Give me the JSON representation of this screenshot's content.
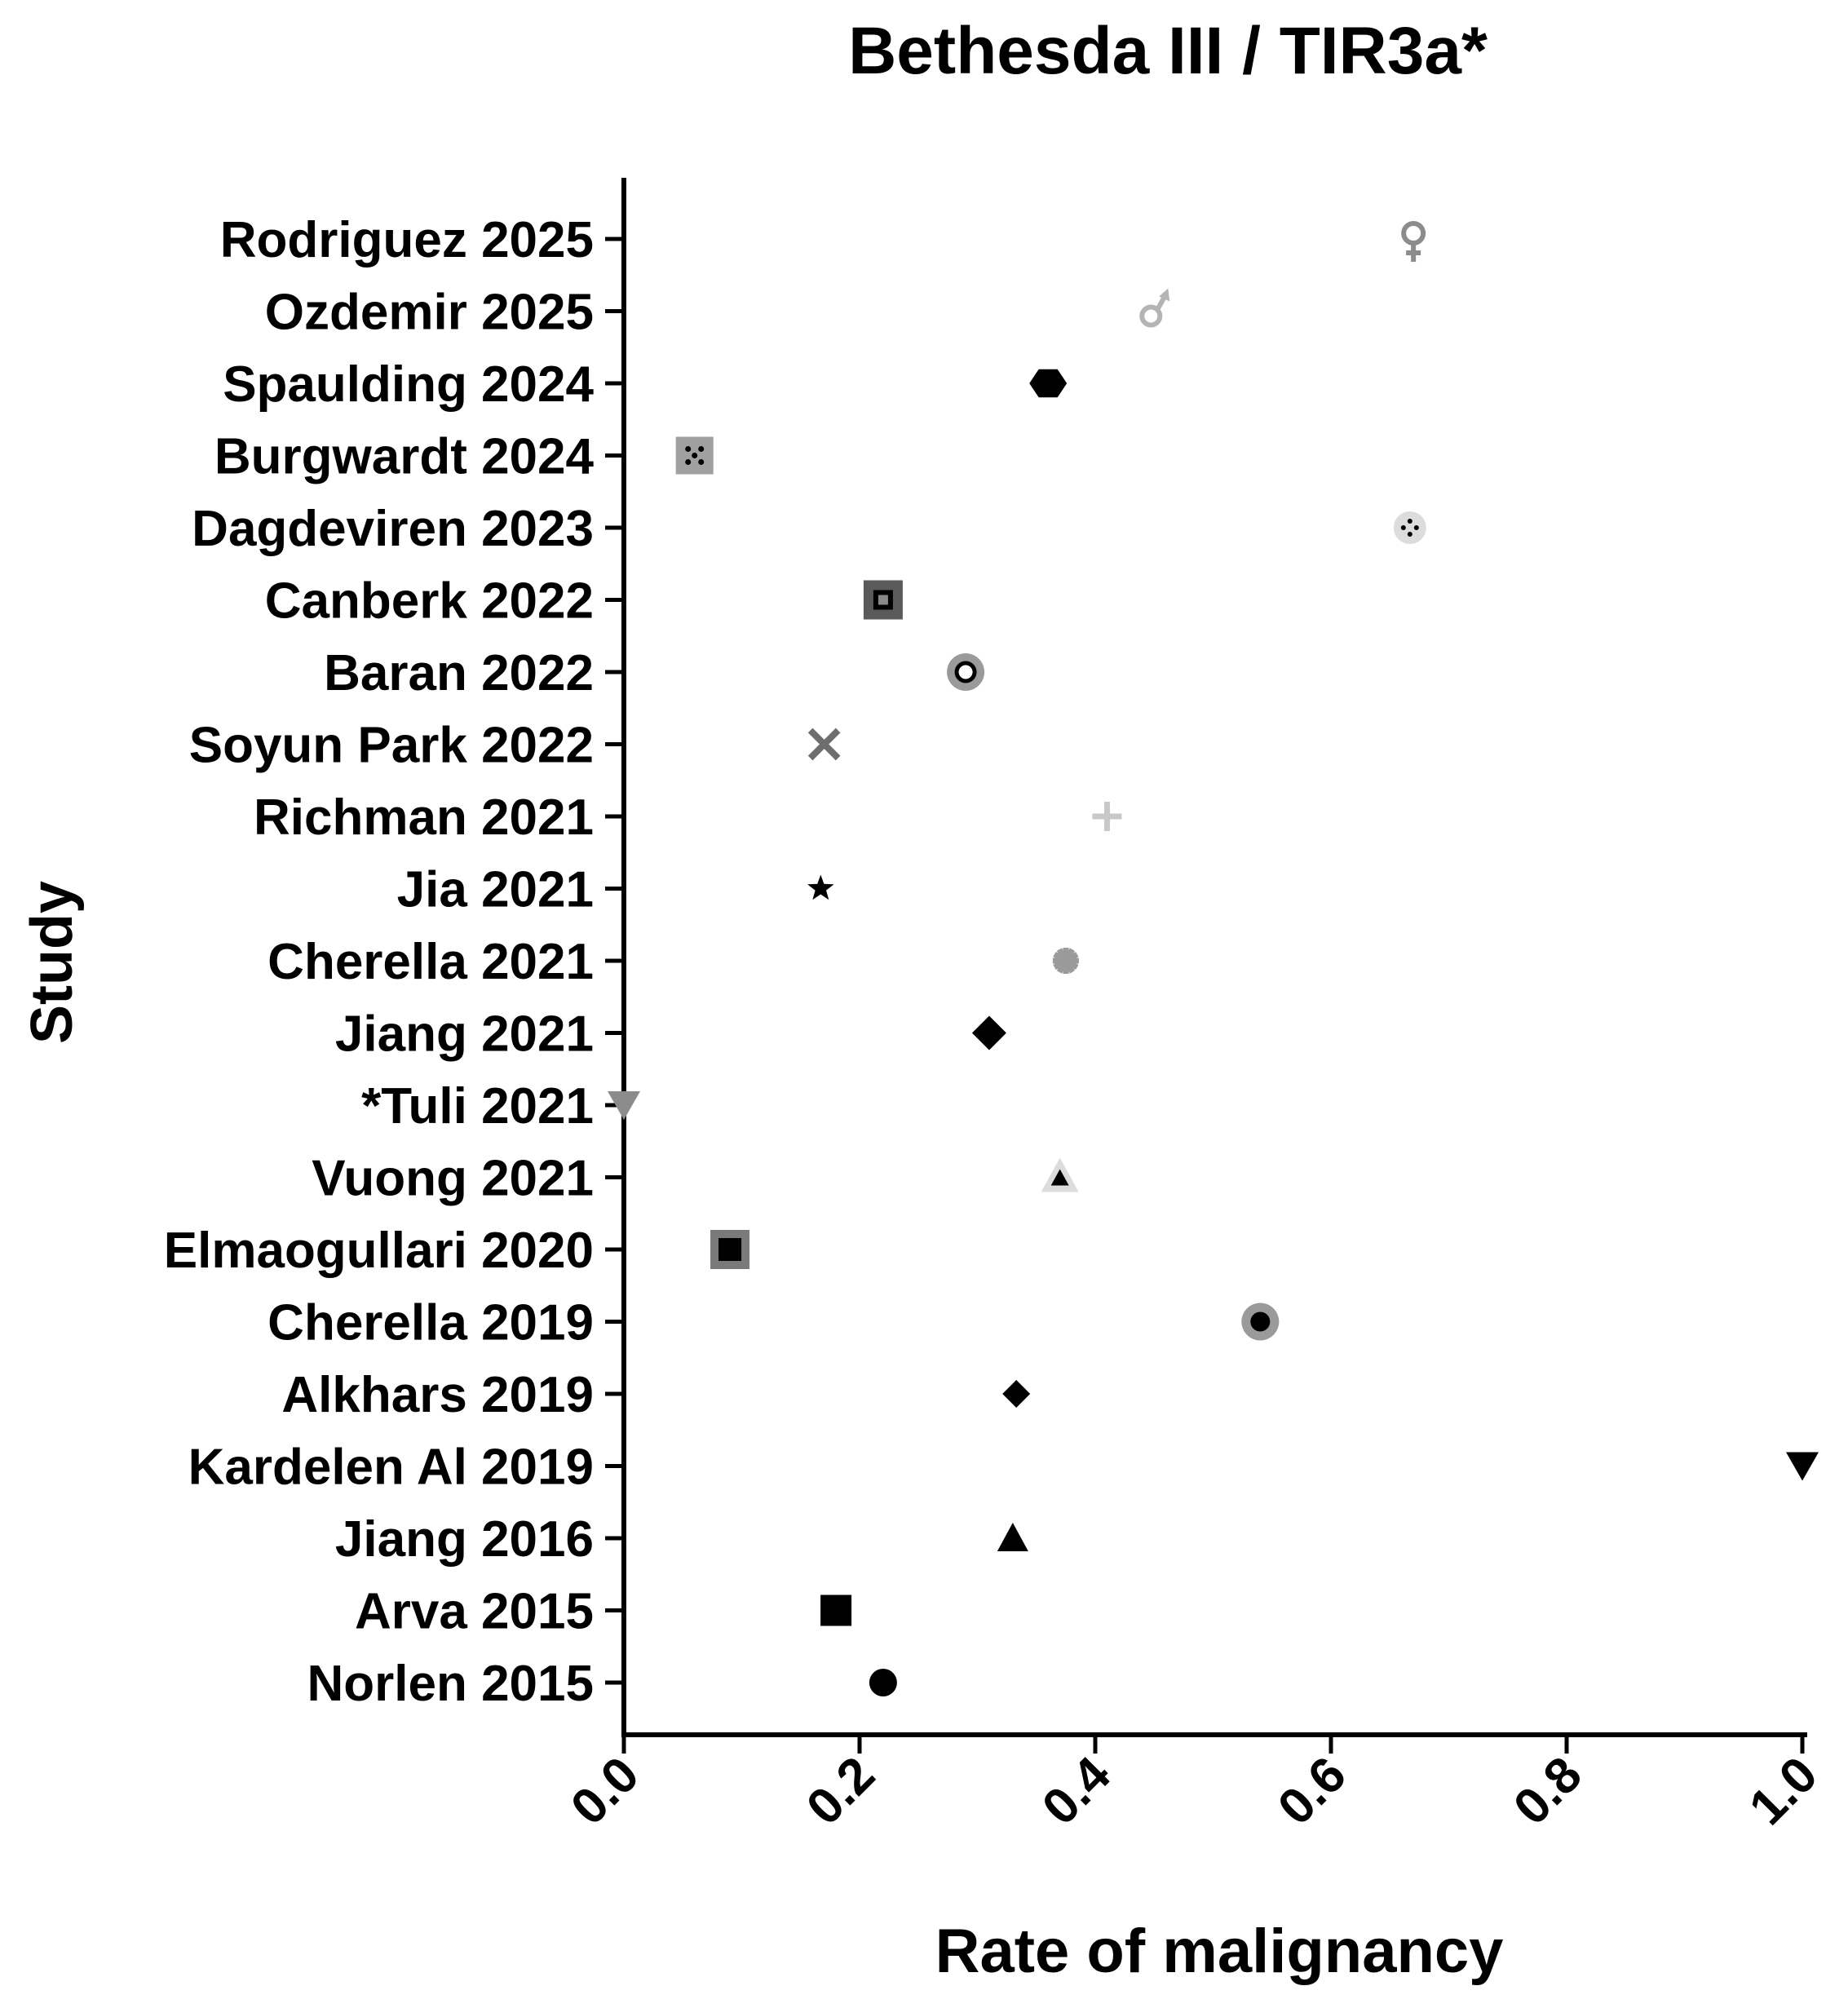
{
  "chart_data": {
    "type": "scatter",
    "title": "Bethesda III / TIR3a*",
    "xlabel": "Rate of malignancy",
    "ylabel": "Study",
    "xlim": [
      0.0,
      1.0
    ],
    "x_ticks": [
      "0.0",
      "0.2",
      "0.4",
      "0.6",
      "0.8",
      "1.0"
    ],
    "grid": false,
    "legend": "none",
    "points": [
      {
        "study": "Rodriguez 2025",
        "value": 0.67,
        "marker": "female-symbol",
        "color": "#8c8c8c"
      },
      {
        "study": "Ozdemir 2025",
        "value": 0.45,
        "marker": "male-symbol",
        "color": "#b4b4b4"
      },
      {
        "study": "Spaulding 2024",
        "value": 0.36,
        "marker": "hexagon",
        "color": "#000000"
      },
      {
        "study": "Burgwardt 2024",
        "value": 0.06,
        "marker": "square-x",
        "color": "#a0a0a0"
      },
      {
        "study": "Dagdeviren 2023",
        "value": 0.667,
        "marker": "circle-dotted",
        "color": "#dcdcdc"
      },
      {
        "study": "Canberk 2022",
        "value": 0.22,
        "marker": "square-ring",
        "color": "#5a5a5a"
      },
      {
        "study": "Baran 2022",
        "value": 0.29,
        "marker": "circle-ring",
        "color": "#9a9a9a"
      },
      {
        "study": "Soyun Park 2022",
        "value": 0.17,
        "marker": "x",
        "color": "#6e6e6e"
      },
      {
        "study": "Richman 2021",
        "value": 0.41,
        "marker": "plus",
        "color": "#c8c8c8"
      },
      {
        "study": "Jia 2021",
        "value": 0.167,
        "marker": "star",
        "color": "#000000"
      },
      {
        "study": "Cherella 2021",
        "value": 0.375,
        "marker": "asterisk",
        "color": "#9a9a9a"
      },
      {
        "study": "Jiang 2021",
        "value": 0.31,
        "marker": "diamond",
        "color": "#000000"
      },
      {
        "study": "*Tuli 2021",
        "value": 0.0,
        "marker": "triangle-down",
        "color": "#8c8c8c"
      },
      {
        "study": "Vuong 2021",
        "value": 0.37,
        "marker": "triangle-ring",
        "color": "#dcdcdc"
      },
      {
        "study": "Elmaogullari 2020",
        "value": 0.09,
        "marker": "square-filled-border",
        "color": "#7a7a7a"
      },
      {
        "study": "Cherella 2019",
        "value": 0.54,
        "marker": "circle-filled-border",
        "color": "#9a9a9a"
      },
      {
        "study": "Alkhars 2019",
        "value": 0.333,
        "marker": "diamond-small",
        "color": "#000000"
      },
      {
        "study": "Kardelen Al 2019",
        "value": 1.0,
        "marker": "triangle-down",
        "color": "#000000"
      },
      {
        "study": "Jiang 2016",
        "value": 0.33,
        "marker": "triangle-up",
        "color": "#000000"
      },
      {
        "study": "Arva 2015",
        "value": 0.18,
        "marker": "square",
        "color": "#000000"
      },
      {
        "study": "Norlen 2015",
        "value": 0.22,
        "marker": "circle",
        "color": "#000000"
      }
    ]
  }
}
